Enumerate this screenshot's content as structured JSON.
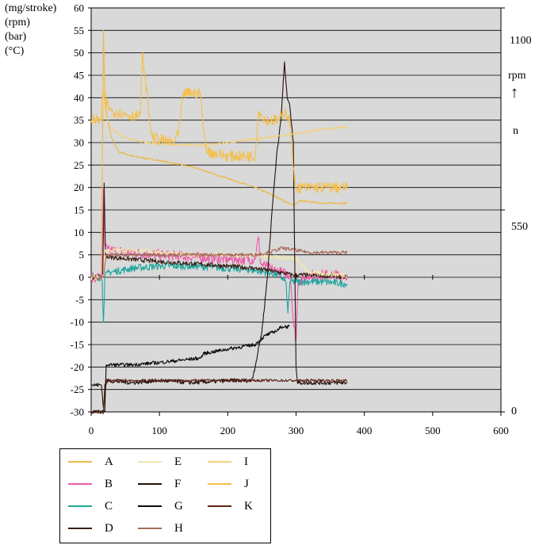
{
  "y_titles": [
    "(mg/stroke)",
    "(rpm)",
    "(bar)",
    "(°C)"
  ],
  "right_axis": {
    "labels": [
      "1100",
      "550",
      "0"
    ],
    "unit": "rpm",
    "arrow": "↑",
    "symbol": "n"
  },
  "chart_data": {
    "type": "line",
    "xlim": [
      0,
      600
    ],
    "ylim": [
      -30,
      60
    ],
    "x_ticks": [
      "0",
      "100",
      "200",
      "300",
      "400",
      "500",
      "600"
    ],
    "y_ticks": [
      "60",
      "55",
      "50",
      "45",
      "40",
      "35",
      "30",
      "25",
      "20",
      "15",
      "10",
      "5",
      "0",
      "-5",
      "-10",
      "-15",
      "-20",
      "-25",
      "-30"
    ],
    "y2lim": [
      0,
      1100
    ],
    "y2_ticks": [
      "1100",
      "550",
      "0"
    ],
    "grid": true,
    "legend_position": "bottom-left",
    "series": [
      {
        "name": "A",
        "color": "#e9b94a",
        "noise": 0.2,
        "points": [
          [
            0,
            0
          ],
          [
            15,
            0
          ],
          [
            18,
            55
          ],
          [
            20,
            40
          ],
          [
            24,
            35
          ],
          [
            30,
            31
          ],
          [
            40,
            28
          ],
          [
            60,
            27
          ],
          [
            100,
            26
          ],
          [
            150,
            24.5
          ],
          [
            200,
            22
          ],
          [
            240,
            20
          ],
          [
            270,
            18
          ],
          [
            295,
            16
          ],
          [
            305,
            17
          ],
          [
            340,
            16.5
          ],
          [
            375,
            16.5
          ]
        ]
      },
      {
        "name": "B",
        "color": "#ec5aa9",
        "noise": 1.2,
        "points": [
          [
            0,
            0
          ],
          [
            16,
            0
          ],
          [
            18,
            20
          ],
          [
            20,
            7
          ],
          [
            24,
            6
          ],
          [
            60,
            5.5
          ],
          [
            100,
            5
          ],
          [
            150,
            4.5
          ],
          [
            200,
            4
          ],
          [
            240,
            4
          ],
          [
            245,
            9
          ],
          [
            248,
            3
          ],
          [
            260,
            2
          ],
          [
            280,
            1
          ],
          [
            292,
            0.5
          ],
          [
            296,
            -10
          ],
          [
            300,
            -14
          ],
          [
            303,
            -1
          ],
          [
            320,
            0.5
          ],
          [
            375,
            0.5
          ]
        ]
      },
      {
        "name": "C",
        "color": "#1fa59c",
        "noise": 0.8,
        "points": [
          [
            0,
            0
          ],
          [
            16,
            0
          ],
          [
            18,
            -10
          ],
          [
            20,
            0
          ],
          [
            24,
            1
          ],
          [
            60,
            2
          ],
          [
            100,
            2.5
          ],
          [
            150,
            2.5
          ],
          [
            200,
            2
          ],
          [
            240,
            1.5
          ],
          [
            260,
            1
          ],
          [
            275,
            0.5
          ],
          [
            285,
            -1
          ],
          [
            288,
            -8
          ],
          [
            291,
            -1
          ],
          [
            300,
            -1
          ],
          [
            340,
            -1
          ],
          [
            375,
            -1.5
          ]
        ]
      },
      {
        "name": "D",
        "color": "#3a1c12",
        "noise": 0.5,
        "points": [
          [
            0,
            0
          ],
          [
            17,
            0
          ],
          [
            19,
            21
          ],
          [
            21,
            5
          ],
          [
            25,
            4.5
          ],
          [
            60,
            4
          ],
          [
            100,
            3.5
          ],
          [
            150,
            3
          ],
          [
            200,
            2.5
          ],
          [
            240,
            2
          ],
          [
            260,
            1.5
          ],
          [
            280,
            1
          ],
          [
            295,
            0.5
          ],
          [
            320,
            0.5
          ],
          [
            375,
            0
          ]
        ]
      },
      {
        "name": "E",
        "color": "#f1e6b0",
        "noise": 0.6,
        "points": [
          [
            0,
            0
          ],
          [
            18,
            0
          ],
          [
            20,
            6
          ],
          [
            30,
            6
          ],
          [
            80,
            6
          ],
          [
            90,
            5.5
          ],
          [
            150,
            5
          ],
          [
            200,
            5
          ],
          [
            240,
            5
          ],
          [
            300,
            4
          ],
          [
            320,
            1
          ],
          [
            375,
            0.5
          ]
        ]
      },
      {
        "name": "F",
        "color": "#25110b",
        "noise": 0.45,
        "points": [
          [
            0,
            -24
          ],
          [
            15,
            -24
          ],
          [
            18,
            -29
          ],
          [
            22,
            -23
          ],
          [
            60,
            -23.5
          ],
          [
            100,
            -23
          ],
          [
            150,
            -23.5
          ],
          [
            200,
            -23
          ],
          [
            235,
            -23
          ],
          [
            240,
            -20
          ],
          [
            250,
            -12
          ],
          [
            258,
            0
          ],
          [
            265,
            15
          ],
          [
            272,
            28
          ],
          [
            278,
            35
          ],
          [
            283,
            48
          ],
          [
            287,
            40
          ],
          [
            291,
            38
          ],
          [
            296,
            30
          ],
          [
            300,
            -20
          ],
          [
            302,
            -23.5
          ],
          [
            375,
            -23.5
          ]
        ]
      },
      {
        "name": "G",
        "color": "#0a0a0a",
        "noise": 0.4,
        "points": [
          [
            0,
            -30
          ],
          [
            20,
            -30
          ],
          [
            22,
            -19.5
          ],
          [
            60,
            -19.5
          ],
          [
            100,
            -19
          ],
          [
            160,
            -18
          ],
          [
            165,
            -17
          ],
          [
            200,
            -16
          ],
          [
            240,
            -15
          ],
          [
            255,
            -13
          ],
          [
            270,
            -12
          ],
          [
            280,
            -11
          ],
          [
            290,
            -11
          ]
        ]
      },
      {
        "name": "H",
        "color": "#a86b5c",
        "noise": 0.4,
        "points": [
          [
            0,
            0
          ],
          [
            18,
            0
          ],
          [
            22,
            5
          ],
          [
            60,
            5
          ],
          [
            120,
            5
          ],
          [
            200,
            5
          ],
          [
            240,
            5
          ],
          [
            260,
            5.5
          ],
          [
            280,
            6.5
          ],
          [
            300,
            6
          ],
          [
            320,
            5.5
          ],
          [
            375,
            5.5
          ]
        ]
      },
      {
        "name": "I",
        "color": "#f5cf7a",
        "noise": 0.25,
        "points": [
          [
            0,
            35
          ],
          [
            15,
            35
          ],
          [
            18,
            40
          ],
          [
            22,
            36
          ],
          [
            30,
            33
          ],
          [
            50,
            31
          ],
          [
            80,
            30
          ],
          [
            120,
            29.5
          ],
          [
            170,
            29.5
          ],
          [
            200,
            30
          ],
          [
            250,
            31
          ],
          [
            300,
            32
          ],
          [
            340,
            33
          ],
          [
            375,
            33.5
          ]
        ]
      },
      {
        "name": "J",
        "color": "#f3c04f",
        "noise": 1.3,
        "points": [
          [
            0,
            35
          ],
          [
            15,
            35
          ],
          [
            18,
            45
          ],
          [
            22,
            39
          ],
          [
            30,
            37
          ],
          [
            60,
            36
          ],
          [
            72,
            36
          ],
          [
            75,
            50
          ],
          [
            78,
            45
          ],
          [
            82,
            41
          ],
          [
            86,
            34
          ],
          [
            90,
            31
          ],
          [
            120,
            30
          ],
          [
            128,
            32
          ],
          [
            135,
            41
          ],
          [
            160,
            41
          ],
          [
            165,
            32
          ],
          [
            170,
            28
          ],
          [
            200,
            27
          ],
          [
            240,
            27
          ],
          [
            245,
            37
          ],
          [
            255,
            35
          ],
          [
            275,
            35
          ],
          [
            285,
            37
          ],
          [
            292,
            34
          ],
          [
            296,
            24
          ],
          [
            300,
            20
          ],
          [
            375,
            20
          ]
        ]
      },
      {
        "name": "K",
        "color": "#5c2418",
        "noise": 0.3,
        "points": [
          [
            0,
            -30
          ],
          [
            18,
            -30
          ],
          [
            20,
            -24
          ],
          [
            25,
            -23
          ],
          [
            300,
            -23
          ],
          [
            375,
            -23
          ]
        ]
      }
    ]
  }
}
